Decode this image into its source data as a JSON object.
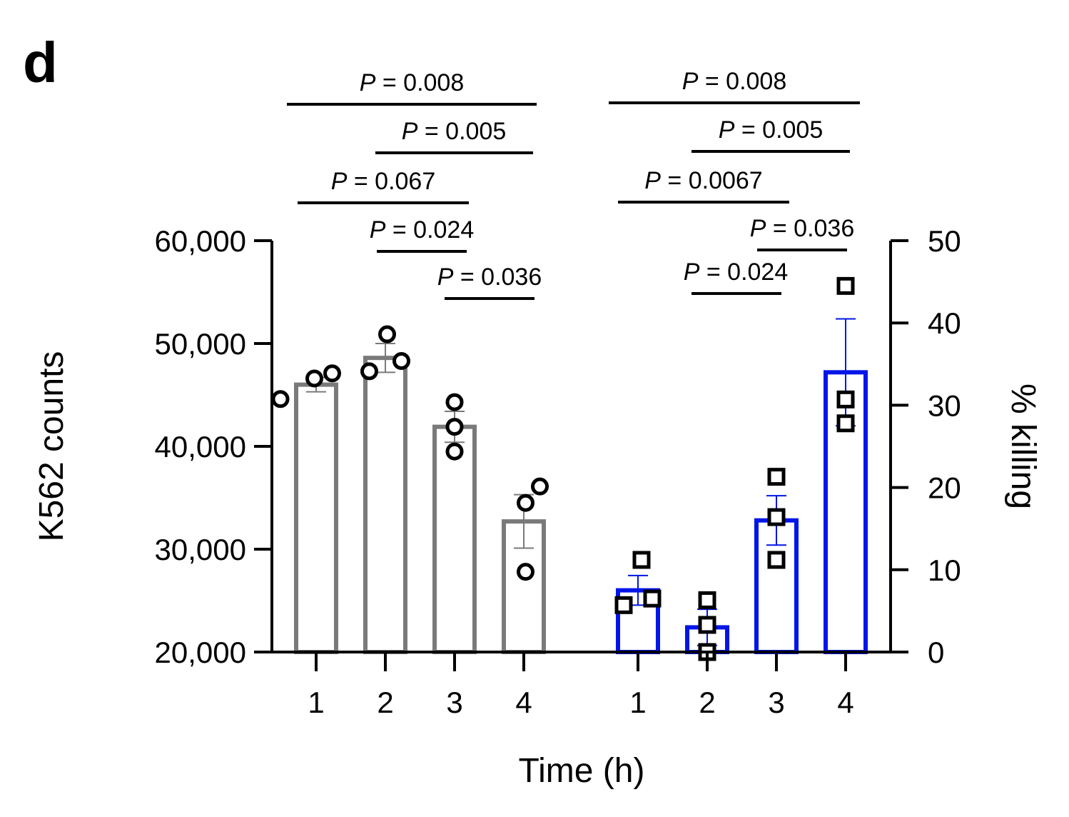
{
  "panel_label": "d",
  "colors": {
    "counts": "#7a7a7a",
    "killing": "#0015e8",
    "points": "#000000"
  },
  "chart_data": {
    "type": "bar",
    "xlabel": "Time (h)",
    "ylabel_left": "K562 counts",
    "ylabel_right": "% killing",
    "ylim_left": [
      20000,
      60000
    ],
    "ylim_right": [
      0,
      50
    ],
    "yticks_left": [
      20000,
      30000,
      40000,
      50000,
      60000
    ],
    "yticks_left_labels": [
      "20,000",
      "30,000",
      "40,000",
      "50,000",
      "60,000"
    ],
    "yticks_right": [
      0,
      10,
      20,
      30,
      40,
      50
    ],
    "yticks_right_labels": [
      "0",
      "10",
      "20",
      "30",
      "40",
      "50"
    ],
    "series": [
      {
        "axis": "left",
        "categories": [
          "1",
          "2",
          "3",
          "4"
        ],
        "values": [
          46000,
          48600,
          41900,
          32700
        ],
        "errors": [
          700,
          1400,
          1500,
          2600
        ],
        "points": [
          [
            44600,
            46600,
            47100
          ],
          [
            47300,
            50900,
            48300
          ],
          [
            39500,
            41900,
            44300
          ],
          [
            27800,
            34500,
            36100
          ]
        ],
        "marker": "circle"
      },
      {
        "axis": "right",
        "categories": [
          "1",
          "2",
          "3",
          "4"
        ],
        "values": [
          7.5,
          3.0,
          16.0,
          34.0
        ],
        "errors": [
          1.8,
          2.2,
          3.0,
          6.5
        ],
        "points": [
          [
            5.7,
            6.5,
            11.2
          ],
          [
            0,
            3.3,
            6.3
          ],
          [
            11.2,
            16.4,
            21.3
          ],
          [
            27.8,
            30.7,
            44.5
          ]
        ],
        "marker": "square"
      }
    ],
    "comparisons": [
      {
        "group": 0,
        "from": 0,
        "to": 3,
        "label": "0.008"
      },
      {
        "group": 0,
        "from": 1,
        "to": 3,
        "label": "0.005"
      },
      {
        "group": 0,
        "from": 0,
        "to": 2,
        "label": "0.067"
      },
      {
        "group": 0,
        "from": 1,
        "to": 2,
        "label": "0.024"
      },
      {
        "group": 0,
        "from": 2,
        "to": 3,
        "label": "0.036"
      },
      {
        "group": 1,
        "from": 0,
        "to": 3,
        "label": "0.008"
      },
      {
        "group": 1,
        "from": 1,
        "to": 3,
        "label": "0.005"
      },
      {
        "group": 1,
        "from": 0,
        "to": 2,
        "label": "0.0067"
      },
      {
        "group": 1,
        "from": 2,
        "to": 3,
        "label": "0.036"
      },
      {
        "group": 1,
        "from": 1,
        "to": 2,
        "label": "0.024"
      }
    ],
    "p_prefix": "P",
    "p_equals": " = "
  }
}
